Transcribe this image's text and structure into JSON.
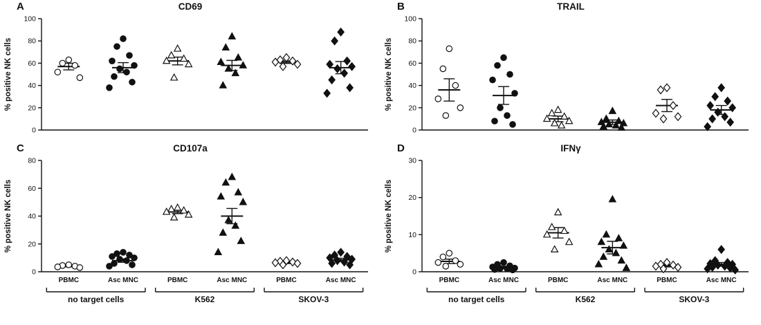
{
  "figure": {
    "marker_color": "#111111",
    "background": "#ffffff",
    "x_brackets": [
      {
        "label": "no target cells",
        "groups": [
          0,
          1
        ]
      },
      {
        "label": "K562",
        "groups": [
          2,
          3
        ]
      },
      {
        "label": "SKOV-3",
        "groups": [
          4,
          5
        ]
      }
    ]
  },
  "chart_data": [
    {
      "type": "scatter",
      "letter": "A",
      "title": "CD69",
      "ylabel": "% positive NK cells",
      "ylim": [
        0,
        100
      ],
      "yticks": [
        0,
        20,
        40,
        60,
        80,
        100
      ],
      "show_x_labels": false,
      "groups": [
        {
          "label": "PBMC",
          "condition": "no target cells",
          "marker": "open-circle",
          "values": [
            63,
            60,
            58,
            52,
            47
          ],
          "mean": 57,
          "sem": 3
        },
        {
          "label": "Asc MNC",
          "condition": "no target cells",
          "marker": "filled-circle",
          "values": [
            82,
            75,
            67,
            62,
            58,
            55,
            52,
            48,
            43,
            38
          ],
          "mean": 56,
          "sem": 4.5
        },
        {
          "label": "PBMC",
          "condition": "K562",
          "marker": "open-triangle",
          "values": [
            73,
            67,
            64,
            62,
            59,
            47
          ],
          "mean": 62,
          "sem": 3.5
        },
        {
          "label": "Asc MNC",
          "condition": "K562",
          "marker": "filled-triangle",
          "values": [
            84,
            74,
            65,
            61,
            58,
            55,
            51,
            40
          ],
          "mean": 58,
          "sem": 4.5
        },
        {
          "label": "PBMC",
          "condition": "SKOV-3",
          "marker": "open-diamond",
          "values": [
            65,
            63,
            62,
            61,
            59,
            57
          ],
          "mean": 61,
          "sem": 1.2
        },
        {
          "label": "Asc MNC",
          "condition": "SKOV-3",
          "marker": "filled-diamond",
          "values": [
            88,
            80,
            62,
            59,
            57,
            55,
            51,
            45,
            38,
            33
          ],
          "mean": 56,
          "sem": 5.5
        }
      ]
    },
    {
      "type": "scatter",
      "letter": "B",
      "title": "TRAIL",
      "ylabel": "% positive NK cells",
      "ylim": [
        0,
        100
      ],
      "yticks": [
        0,
        20,
        40,
        60,
        80,
        100
      ],
      "show_x_labels": false,
      "groups": [
        {
          "label": "PBMC",
          "condition": "no target cells",
          "marker": "open-circle",
          "values": [
            73,
            55,
            40,
            28,
            20,
            13
          ],
          "mean": 36,
          "sem": 10
        },
        {
          "label": "Asc MNC",
          "condition": "no target cells",
          "marker": "filled-circle",
          "values": [
            65,
            58,
            50,
            45,
            33,
            20,
            13,
            8,
            5
          ],
          "mean": 31,
          "sem": 8
        },
        {
          "label": "PBMC",
          "condition": "K562",
          "marker": "open-triangle",
          "values": [
            18,
            15,
            12,
            10,
            8,
            6,
            4
          ],
          "mean": 10,
          "sem": 2.5
        },
        {
          "label": "Asc MNC",
          "condition": "K562",
          "marker": "filled-triangle",
          "values": [
            17,
            10,
            8,
            7,
            6,
            5,
            4,
            3,
            2
          ],
          "mean": 7,
          "sem": 2
        },
        {
          "label": "PBMC",
          "condition": "SKOV-3",
          "marker": "open-diamond",
          "values": [
            38,
            36,
            22,
            15,
            12,
            10
          ],
          "mean": 22,
          "sem": 5.5
        },
        {
          "label": "Asc MNC",
          "condition": "SKOV-3",
          "marker": "filled-diamond",
          "values": [
            38,
            30,
            26,
            22,
            20,
            16,
            12,
            10,
            7,
            3
          ],
          "mean": 18,
          "sem": 4
        }
      ]
    },
    {
      "type": "scatter",
      "letter": "C",
      "title": "CD107a",
      "ylabel": "% positive NK cells",
      "ylim": [
        0,
        80
      ],
      "yticks": [
        0,
        20,
        40,
        60,
        80
      ],
      "show_x_labels": true,
      "groups": [
        {
          "label": "PBMC",
          "condition": "no target cells",
          "marker": "open-circle",
          "values": [
            5,
            4.5,
            4,
            3.5,
            3
          ],
          "mean": 4,
          "sem": 0.5
        },
        {
          "label": "Asc MNC",
          "condition": "no target cells",
          "marker": "filled-circle",
          "values": [
            14,
            13,
            12,
            11,
            10,
            9,
            8,
            6,
            5,
            4
          ],
          "mean": 8,
          "sem": 1.2
        },
        {
          "label": "PBMC",
          "condition": "K562",
          "marker": "open-triangle",
          "values": [
            46,
            45,
            44,
            43,
            41,
            39
          ],
          "mean": 43,
          "sem": 1.2
        },
        {
          "label": "Asc MNC",
          "condition": "K562",
          "marker": "filled-triangle",
          "values": [
            68,
            64,
            57,
            54,
            50,
            37,
            33,
            28,
            22,
            14
          ],
          "mean": 40,
          "sem": 5.5
        },
        {
          "label": "PBMC",
          "condition": "SKOV-3",
          "marker": "open-diamond",
          "values": [
            8,
            7.5,
            7,
            6.5,
            6,
            5
          ],
          "mean": 6.5,
          "sem": 0.6
        },
        {
          "label": "Asc MNC",
          "condition": "SKOV-3",
          "marker": "filled-diamond",
          "values": [
            14,
            12,
            11,
            10,
            9,
            8,
            7,
            6,
            5
          ],
          "mean": 8.5,
          "sem": 1.2
        }
      ]
    },
    {
      "type": "scatter",
      "letter": "D",
      "title": "IFNγ",
      "ylabel": "% positive NK cells",
      "ylim": [
        0,
        30
      ],
      "yticks": [
        0,
        10,
        20,
        30
      ],
      "show_x_labels": true,
      "groups": [
        {
          "label": "PBMC",
          "condition": "no target cells",
          "marker": "open-circle",
          "values": [
            5,
            4,
            3,
            2.5,
            2,
            1.5
          ],
          "mean": 2.8,
          "sem": 0.6
        },
        {
          "label": "Asc MNC",
          "condition": "no target cells",
          "marker": "filled-circle",
          "values": [
            2.5,
            2,
            1.6,
            1.3,
            1,
            0.9,
            0.8,
            0.6,
            0.5
          ],
          "mean": 1.2,
          "sem": 0.3
        },
        {
          "label": "PBMC",
          "condition": "K562",
          "marker": "open-triangle",
          "values": [
            16,
            12,
            11,
            10,
            8,
            6
          ],
          "mean": 10.5,
          "sem": 1.4
        },
        {
          "label": "Asc MNC",
          "condition": "K562",
          "marker": "filled-triangle",
          "values": [
            19.5,
            10,
            9,
            8,
            7,
            6,
            5,
            4,
            3,
            2,
            1
          ],
          "mean": 6.5,
          "sem": 1.7
        },
        {
          "label": "PBMC",
          "condition": "SKOV-3",
          "marker": "open-diamond",
          "values": [
            2.5,
            2,
            1.8,
            1.5,
            1.2,
            0.8
          ],
          "mean": 1.6,
          "sem": 0.3
        },
        {
          "label": "Asc MNC",
          "condition": "SKOV-3",
          "marker": "filled-diamond",
          "values": [
            6,
            3,
            2.5,
            2.2,
            2,
            1.8,
            1.5,
            1.2,
            1,
            0.8,
            0.5
          ],
          "mean": 2,
          "sem": 0.5
        }
      ]
    }
  ]
}
